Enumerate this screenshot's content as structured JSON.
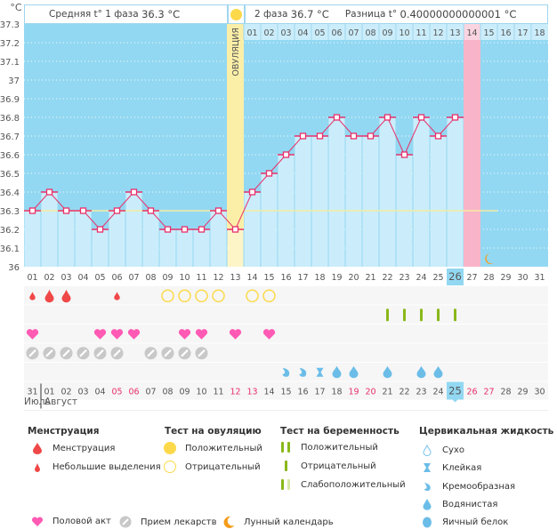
{
  "header": {
    "phase1_label": "Средняя t° 1 фаза",
    "phase1_value": "36.3 °C",
    "phase2_label": "2 фаза",
    "phase2_value": "36.7 °C",
    "diff_label": "Разница t°",
    "diff_value": "0.40000000000001 °C",
    "ovulation_label": "ОВУЛЯЦИЯ"
  },
  "chart_data": {
    "type": "line",
    "title": "",
    "ylabel": "°C",
    "ylim": [
      36,
      37.3
    ],
    "yticks": [
      "37.3",
      "37.2",
      "37.1",
      "37",
      "36.9",
      "36.8",
      "36.7",
      "36.6",
      "36.5",
      "36.4",
      "36.3",
      "36.2",
      "36.1",
      "36"
    ],
    "ytick_values": [
      37.3,
      37.2,
      37.1,
      37.0,
      36.9,
      36.8,
      36.7,
      36.6,
      36.5,
      36.4,
      36.3,
      36.2,
      36.1,
      36.0
    ],
    "cycle_days": [
      "01",
      "02",
      "03",
      "04",
      "05",
      "06",
      "07",
      "08",
      "09",
      "10",
      "11",
      "12",
      "13",
      "14",
      "15",
      "16",
      "17",
      "18",
      "19",
      "20",
      "21",
      "22",
      "23",
      "24",
      "25",
      "26",
      "27",
      "28",
      "29",
      "30",
      "31"
    ],
    "series": [
      {
        "name": "Базальная температура",
        "values": [
          36.3,
          36.4,
          36.3,
          36.3,
          36.2,
          36.3,
          36.4,
          36.3,
          36.2,
          36.2,
          36.2,
          36.3,
          36.2,
          36.4,
          36.5,
          36.6,
          36.7,
          36.7,
          36.8,
          36.7,
          36.7,
          36.8,
          36.6,
          36.8,
          36.7,
          36.8,
          null,
          null,
          null,
          null,
          null
        ]
      }
    ],
    "coverline": 36.3,
    "coverline_end_day": 31,
    "ovulation_day": 13,
    "current_day": 26,
    "phase2_day_header": [
      "01",
      "02",
      "03",
      "04",
      "05",
      "06",
      "07",
      "08",
      "09",
      "10",
      "11",
      "12",
      "13",
      "14",
      "15",
      "16",
      "17",
      "18"
    ],
    "phase2_highlight": "14",
    "expected_period_day": 27,
    "moon_day": 28,
    "calendar_dates": [
      "31",
      "01",
      "02",
      "03",
      "04",
      "05",
      "06",
      "07",
      "08",
      "09",
      "10",
      "11",
      "12",
      "13",
      "14",
      "15",
      "16",
      "17",
      "18",
      "19",
      "20",
      "21",
      "22",
      "23",
      "24",
      "25",
      "26",
      "27",
      "28",
      "29",
      "30"
    ],
    "weekend_dates_idx": [
      5,
      6,
      12,
      13,
      19,
      20,
      26,
      27
    ],
    "today_date_idx": 25,
    "months": [
      "Июль",
      "Август"
    ],
    "colors": {
      "chart_bg": "#93d8f2",
      "bar_fill": "#cbedfb",
      "line": "#e8306a",
      "ovulation": "#fbefa8",
      "period": "#f8b4c8",
      "coverline": "#f5eca0",
      "weekend": "#e8306a"
    },
    "symbol_rows": {
      "menstruation": {
        "1": "small",
        "2": "large",
        "3": "large",
        "6": "small"
      },
      "ovulation_test": {
        "9": "negative",
        "10": "negative",
        "11": "negative",
        "12": "negative",
        "14": "negative",
        "15": "negative"
      },
      "pregnancy_test": {
        "22": "negative",
        "23": "negative",
        "24": "negative",
        "25": "negative",
        "26": "negative"
      },
      "intercourse": [
        1,
        5,
        6,
        7,
        10,
        11,
        13,
        15
      ],
      "medication": [
        1,
        2,
        3,
        4,
        5,
        6,
        8,
        9,
        10,
        11
      ],
      "cervical_fluid": {
        "16": "creamy",
        "17": "creamy",
        "18": "sticky",
        "19": "watery",
        "20": "watery",
        "22": "watery",
        "24": "watery",
        "25": "watery"
      }
    }
  },
  "legend": {
    "menstruation": {
      "title": "Менструация",
      "items": [
        "Менструация",
        "Небольшие выделения"
      ]
    },
    "ovulation_test": {
      "title": "Тест на овуляцию",
      "items": [
        "Положительный",
        "Отрицательный"
      ]
    },
    "pregnancy_test": {
      "title": "Тест на беременность",
      "items": [
        "Положительный",
        "Отрицательный",
        "Слабоположительный"
      ]
    },
    "cervical_fluid": {
      "title": "Цервикальная жидкость",
      "items": [
        "Сухо",
        "Клейкая",
        "Кремообразная",
        "Водянистая",
        "Яичный белок"
      ]
    },
    "other": [
      "Половой акт",
      "Прием лекарств",
      "Лунный календарь"
    ]
  }
}
